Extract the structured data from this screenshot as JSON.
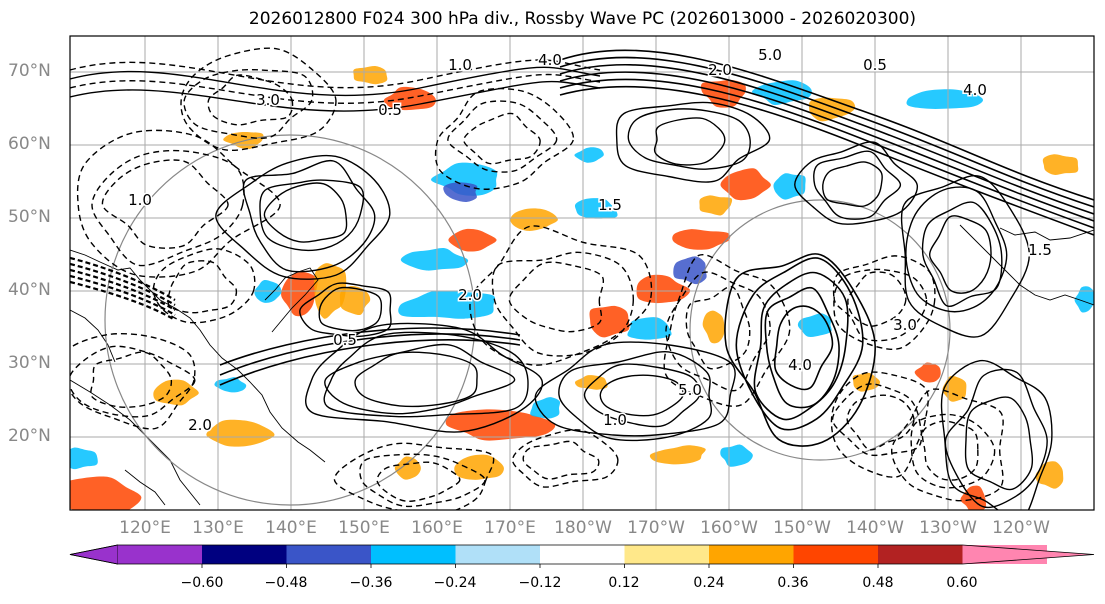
{
  "title": "2026012800 F024 300 hPa div., Rossby Wave PC (2026013000 - 2026020300)",
  "latitude_labels": [
    "70°N",
    "60°N",
    "50°N",
    "40°N",
    "30°N",
    "20°N"
  ],
  "longitude_labels": [
    "120°E",
    "130°E",
    "140°E",
    "150°E",
    "160°E",
    "170°E",
    "180°W",
    "170°W",
    "160°W",
    "150°W",
    "140°W",
    "130°W",
    "120°W"
  ],
  "contour_labels": [
    "1.0",
    "2.0",
    "0.5",
    "4.0",
    "5.0",
    "3.0",
    "1.5",
    "1.0",
    "2.0",
    "0.5",
    "4.0",
    "5.0",
    "3.0",
    "1.5",
    "1.0",
    "2.0",
    "0.5",
    "4.0"
  ],
  "colorbar": {
    "ticks": [
      "−0.60",
      "−0.48",
      "−0.36",
      "−0.24",
      "−0.12",
      "0.12",
      "0.24",
      "0.36",
      "0.48",
      "0.60"
    ],
    "colors": [
      "#9932cc",
      "#000080",
      "#3a55c8",
      "#00bfff",
      "#b0e0f8",
      "#ffffff",
      "#ffe88a",
      "#ffa500",
      "#ff4500",
      "#b22222",
      "#ff85b0"
    ]
  },
  "shading_colors": {
    "negative_strong": "#3a55c8",
    "negative": "#00bfff",
    "positive": "#ffa500",
    "positive_strong": "#ff4500"
  }
}
